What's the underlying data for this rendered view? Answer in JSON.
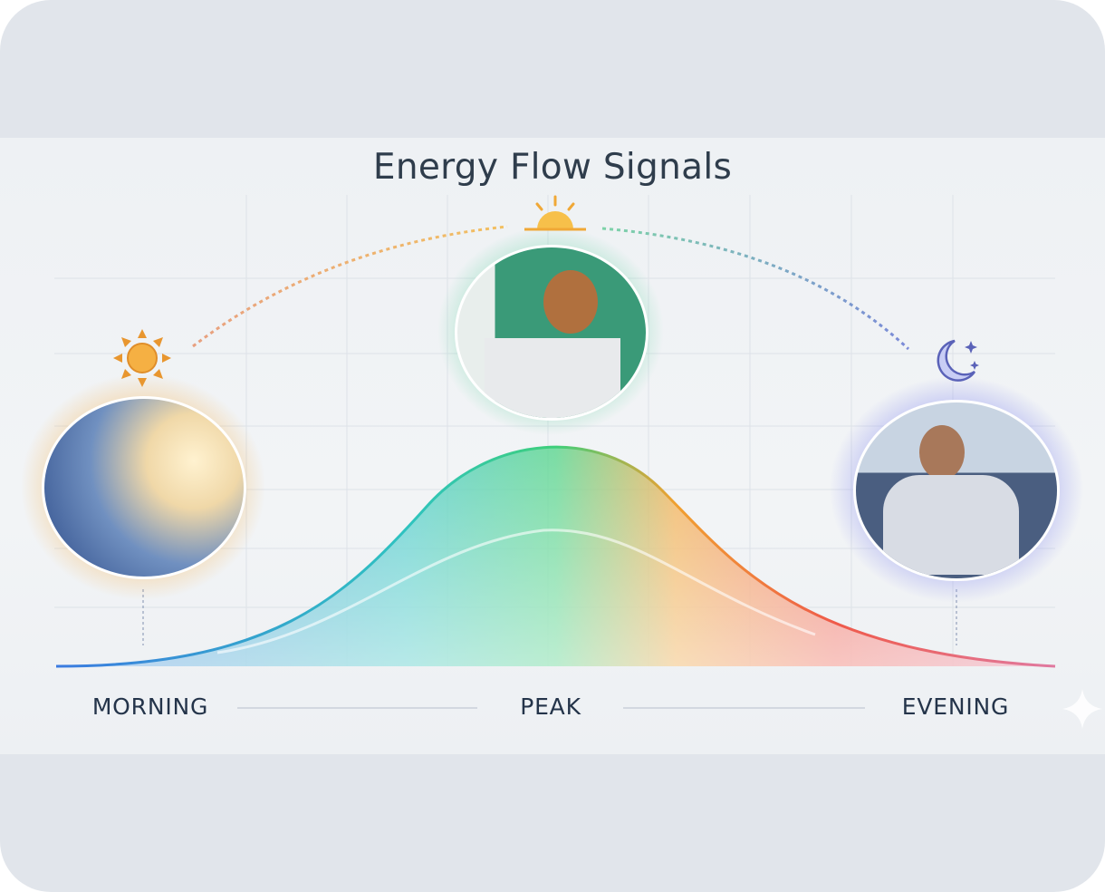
{
  "title": "Energy Flow Signals",
  "stages": [
    {
      "label": "MORNING",
      "icon": "sun-icon",
      "photo": "person-stretching-photo",
      "glow": "#f5b04a"
    },
    {
      "label": "PEAK",
      "icon": "sunrise-icon",
      "photo": "woman-working-laptop-photo",
      "glow": "#5fd3a0"
    },
    {
      "label": "EVENING",
      "icon": "moon-stars-icon",
      "photo": "man-relaxing-sofa-photo",
      "glow": "#8a8ff0"
    }
  ],
  "curve_colors": [
    "#3b7be0",
    "#2fc3c0",
    "#3ecf7a",
    "#f0a030",
    "#ef5a4a",
    "#e07aa0"
  ]
}
